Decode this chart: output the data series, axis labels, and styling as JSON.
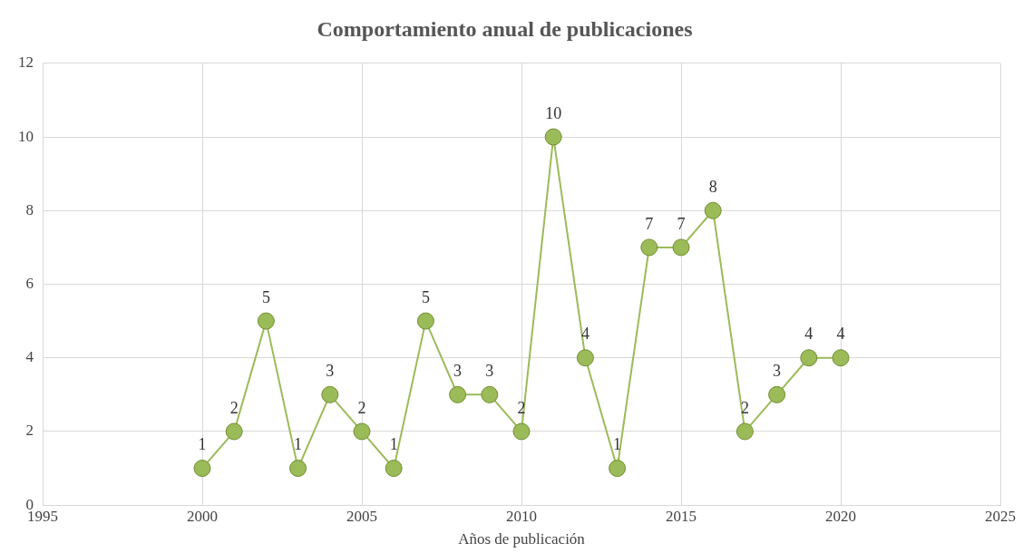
{
  "chart_data": {
    "type": "line",
    "title": "Comportamiento anual de publicaciones",
    "xlabel": "Años de publicación",
    "x": [
      2000,
      2001,
      2002,
      2003,
      2004,
      2005,
      2006,
      2007,
      2008,
      2009,
      2010,
      2011,
      2012,
      2013,
      2014,
      2015,
      2016,
      2017,
      2018,
      2019,
      2020
    ],
    "series": [
      {
        "color": "#9bbb59",
        "values": [
          1,
          2,
          5,
          1,
          3,
          2,
          1,
          5,
          3,
          3,
          2,
          10,
          4,
          1,
          7,
          7,
          8,
          2,
          3,
          4,
          4
        ]
      }
    ],
    "xlim": [
      1995,
      2025
    ],
    "xticks": [
      1995,
      2000,
      2005,
      2010,
      2015,
      2020,
      2025
    ],
    "ylim": [
      0,
      12
    ],
    "yticks": [
      0,
      2,
      4,
      6,
      8,
      10,
      12
    ],
    "grid": true,
    "legend": false,
    "marker": "circle",
    "line_style": "solid",
    "data_labels": true
  }
}
